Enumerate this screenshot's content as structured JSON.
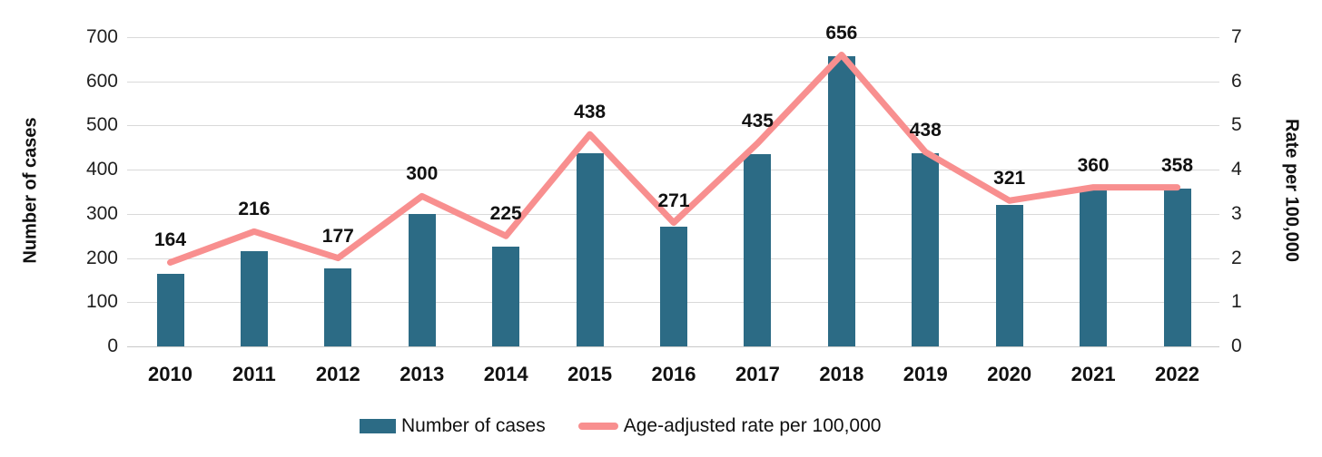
{
  "chart_data": {
    "type": "combo",
    "categories": [
      "2010",
      "2011",
      "2012",
      "2013",
      "2014",
      "2015",
      "2016",
      "2017",
      "2018",
      "2019",
      "2020",
      "2021",
      "2022"
    ],
    "series": [
      {
        "name": "Number of cases",
        "chart_type": "bar",
        "axis": "left",
        "values": [
          164,
          216,
          177,
          300,
          225,
          438,
          271,
          435,
          656,
          438,
          321,
          360,
          358
        ],
        "color": "#2C6B85"
      },
      {
        "name": "Age-adjusted rate per 100,000",
        "chart_type": "line",
        "axis": "right",
        "values": [
          1.9,
          2.6,
          2.0,
          3.4,
          2.5,
          4.8,
          2.8,
          4.6,
          6.6,
          4.4,
          3.3,
          3.6,
          3.6
        ],
        "color": "#F88F8F"
      }
    ],
    "bar_labels": [
      "164",
      "216",
      "177",
      "300",
      "225",
      "438",
      "271",
      "435",
      "656",
      "438",
      "321",
      "360",
      "358"
    ],
    "left_axis": {
      "title": "Number of cases",
      "min": 0,
      "max": 700,
      "step": 100,
      "ticks": [
        "0",
        "100",
        "200",
        "300",
        "400",
        "500",
        "600",
        "700"
      ]
    },
    "right_axis": {
      "title": "Rate per 100,000",
      "min": 0,
      "max": 7,
      "step": 1,
      "ticks": [
        "0",
        "1",
        "2",
        "3",
        "4",
        "5",
        "6",
        "7"
      ]
    },
    "grid": true,
    "legend_position": "bottom"
  },
  "legend": {
    "bar_label": "Number of cases",
    "line_label": "Age-adjusted rate per 100,000"
  },
  "colors": {
    "bar": "#2C6B85",
    "line": "#F88F8F",
    "gridline": "#d9d9d9",
    "text": "#111111"
  }
}
